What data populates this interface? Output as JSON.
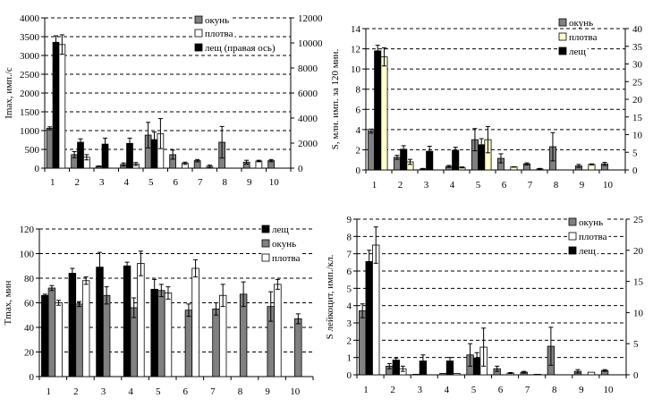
{
  "chart_data": [
    {
      "type": "bar",
      "ylabel": "Imax, имп./с",
      "categories": [
        "1",
        "2",
        "3",
        "4",
        "5",
        "6",
        "7",
        "8",
        "9",
        "10"
      ],
      "ylim": [
        0,
        4000
      ],
      "yticks": [
        0,
        500,
        1000,
        1500,
        2000,
        2500,
        3000,
        3500,
        4000
      ],
      "y2lim": [
        0,
        12000
      ],
      "y2ticks": [
        0,
        2000,
        4000,
        6000,
        8000,
        10000,
        12000
      ],
      "grid": true,
      "legend": "top-right",
      "series": [
        {
          "name": "окунь",
          "color": "#808080",
          "axis": "left",
          "values": [
            1060,
            360,
            50,
            100,
            880,
            360,
            200,
            690,
            160,
            200
          ],
          "errors": [
            40,
            80,
            10,
            40,
            340,
            120,
            30,
            420,
            50,
            30
          ]
        },
        {
          "name": "лещ (правая ось)",
          "color": "#000000",
          "axis": "right",
          "values": [
            10050,
            2070,
            1920,
            1980,
            2280,
            null,
            null,
            null,
            null,
            null
          ],
          "errors": [
            520,
            270,
            480,
            420,
            600,
            null,
            null,
            null,
            null,
            null
          ]
        },
        {
          "name": "плотва",
          "color": "#ffffff",
          "axis": "left",
          "values": [
            3290,
            290,
            null,
            110,
            920,
            130,
            50,
            null,
            190,
            null
          ],
          "errors": [
            260,
            70,
            null,
            40,
            400,
            30,
            30,
            null,
            20,
            null
          ]
        }
      ],
      "legend_order": [
        0,
        2,
        1
      ]
    },
    {
      "type": "bar",
      "ylabel": "S, млн. имп. за 120 мин.",
      "categories": [
        "1",
        "2",
        "3",
        "4",
        "5",
        "6",
        "7",
        "8",
        "9",
        "10"
      ],
      "ylim": [
        0,
        14
      ],
      "yticks": [
        0,
        2,
        4,
        6,
        8,
        10,
        12,
        14
      ],
      "y2lim": [
        0,
        40
      ],
      "y2ticks": [
        0,
        5,
        10,
        15,
        20,
        25,
        30,
        35,
        40
      ],
      "grid": true,
      "legend": "top-right",
      "series": [
        {
          "name": "окунь",
          "color": "#808080",
          "axis": "left",
          "values": [
            3.85,
            1.25,
            0.1,
            0.35,
            3.0,
            1.15,
            0.6,
            2.3,
            0.4,
            0.6
          ],
          "errors": [
            0.2,
            0.2,
            0.05,
            0.1,
            1.1,
            0.45,
            0.1,
            1.4,
            0.15,
            0.15
          ]
        },
        {
          "name": "лещ",
          "color": "#000000",
          "axis": "left",
          "values": [
            11.8,
            2.05,
            1.85,
            1.95,
            2.5,
            null,
            null,
            null,
            null,
            null
          ],
          "errors": [
            0.55,
            0.35,
            0.5,
            0.3,
            0.6,
            null,
            null,
            null,
            null,
            null
          ]
        },
        {
          "name": "плотва",
          "color": "#ffffcc",
          "axis": "left",
          "values": [
            11.2,
            0.8,
            null,
            0.25,
            3.0,
            0.3,
            0.1,
            null,
            0.55,
            null
          ],
          "errors": [
            0.9,
            0.25,
            null,
            0.05,
            1.3,
            0.02,
            0.05,
            null,
            0.05,
            null
          ]
        }
      ],
      "legend_order": [
        0,
        2,
        1
      ]
    },
    {
      "type": "bar",
      "ylabel": "Tmax, мин",
      "categories": [
        "1",
        "2",
        "3",
        "4",
        "5",
        "6",
        "7",
        "8",
        "9",
        "10"
      ],
      "ylim": [
        0,
        120
      ],
      "yticks": [
        0,
        20,
        40,
        60,
        80,
        100,
        120
      ],
      "grid": true,
      "legend": "top-right",
      "series": [
        {
          "name": "лещ",
          "color": "#000000",
          "axis": "left",
          "values": [
            66,
            84,
            89,
            90,
            71,
            null,
            null,
            null,
            null,
            null
          ],
          "errors": [
            1,
            4,
            12,
            3,
            8,
            null,
            null,
            null,
            null,
            null
          ]
        },
        {
          "name": "окунь",
          "color": "#808080",
          "axis": "left",
          "values": [
            72,
            59,
            66,
            56,
            70,
            54,
            55,
            67,
            57,
            47
          ],
          "errors": [
            2,
            2,
            7,
            8,
            5,
            5,
            5,
            10,
            12,
            4
          ]
        },
        {
          "name": "плотва",
          "color": "#ffffff",
          "axis": "left",
          "values": [
            60,
            78,
            null,
            92,
            68,
            88,
            66,
            null,
            75,
            null
          ],
          "errors": [
            2,
            3,
            null,
            10,
            5,
            7,
            9,
            null,
            4,
            null
          ]
        }
      ],
      "legend_order": [
        0,
        1,
        2
      ]
    },
    {
      "type": "bar",
      "ylabel": "S лейкоцит, имп./кл.",
      "categories": [
        "1",
        "2",
        "3",
        "4",
        "5",
        "6",
        "7",
        "8",
        "9",
        "10"
      ],
      "ylim": [
        0,
        9
      ],
      "yticks": [
        0,
        1,
        2,
        3,
        4,
        5,
        6,
        7,
        8,
        9
      ],
      "y2lim": [
        0,
        25
      ],
      "y2ticks": [
        0,
        5,
        10,
        15,
        20,
        25
      ],
      "grid": true,
      "legend": "top-right",
      "series": [
        {
          "name": "окунь",
          "color": "#808080",
          "axis": "left",
          "values": [
            3.7,
            0.5,
            0.03,
            0.08,
            1.15,
            0.35,
            0.15,
            1.65,
            0.2,
            0.25
          ],
          "errors": [
            0.4,
            0.15,
            null,
            null,
            0.65,
            0.15,
            0.05,
            1.1,
            0.1,
            0.05
          ]
        },
        {
          "name": "лещ",
          "color": "#000000",
          "axis": "left",
          "values": [
            6.55,
            0.85,
            0.8,
            0.8,
            0.98,
            null,
            null,
            null,
            null,
            null
          ],
          "errors": [
            0.65,
            0.12,
            0.35,
            0.2,
            0.3,
            null,
            null,
            null,
            null,
            null
          ]
        },
        {
          "name": "плотва",
          "color": "#ffffff",
          "axis": "left",
          "values": [
            7.5,
            0.35,
            null,
            0.08,
            1.6,
            0.1,
            0.03,
            null,
            0.15,
            null
          ],
          "errors": [
            1.05,
            0.15,
            null,
            null,
            1.1,
            0.03,
            null,
            null,
            null,
            null
          ]
        }
      ],
      "legend_order": [
        0,
        2,
        1
      ]
    }
  ]
}
